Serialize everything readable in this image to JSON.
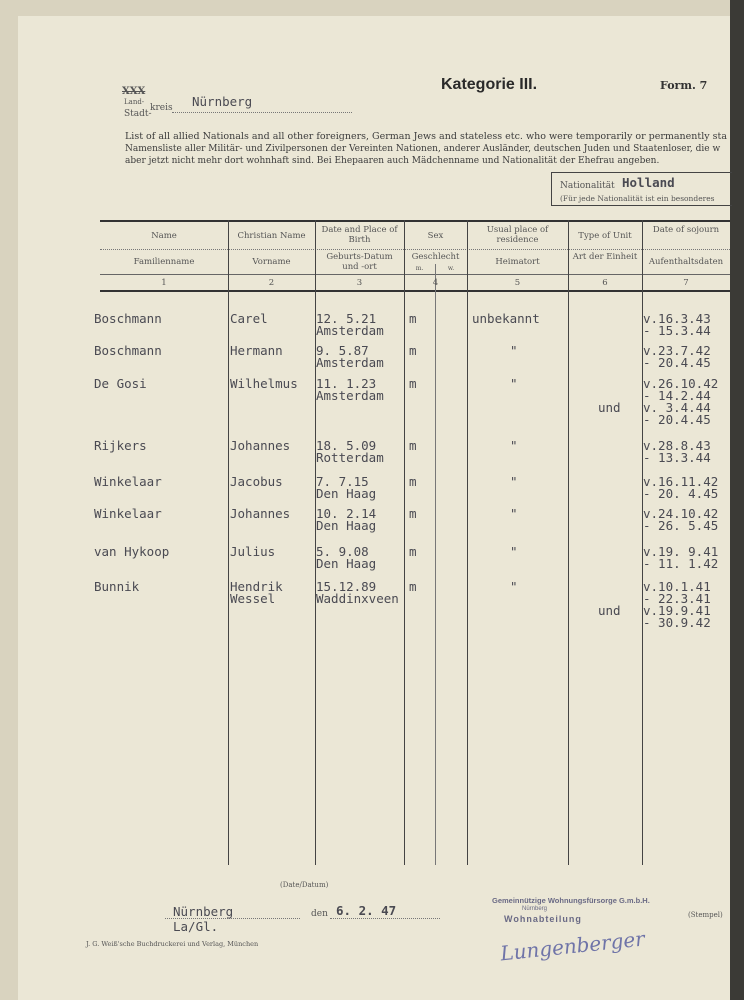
{
  "header": {
    "title": "Kategorie III.",
    "form": "Form. 7",
    "land_struck": "XXX",
    "land_label": "Land-",
    "stadt_label": "Stadt-",
    "kreis_label": "kreis",
    "kreis_value": "Nürnberg",
    "intro_en": "List of all allied Nationals and all other foreigners, German Jews and stateless etc. who were temporarily or permanently sta",
    "intro_de_1": "Namensliste aller Militär- und Zivilpersonen der Vereinten Nationen, anderer Ausländer, deutschen Juden und Staatenloser, die w",
    "intro_de_2": "aber jetzt nicht mehr dort wohnhaft sind. Bei Ehepaaren auch Mädchenname und Nationalität der Ehefrau angeben.",
    "nationality_label": "Nationalität",
    "nationality_value": "Holland",
    "nationality_note": "(Für jede Nationalität ist ein besonderes"
  },
  "columns": [
    {
      "en": "Name",
      "de": "Familienname",
      "num": "1"
    },
    {
      "en": "Christian Name",
      "de": "Vorname",
      "num": "2"
    },
    {
      "en": "Date and Place of Birth",
      "de": "Geburts-Datum und -ort",
      "num": "3"
    },
    {
      "en": "Sex",
      "de": "Geschlecht",
      "num": "4",
      "sub_m": "m.",
      "sub_w": "w."
    },
    {
      "en": "Usual place of residence",
      "de": "Heimatort",
      "num": "5"
    },
    {
      "en": "Type of Unit",
      "de": "Art der Einheit",
      "num": "6"
    },
    {
      "en": "Date of sojourn",
      "de": "Aufenthaltsdaten",
      "num": "7"
    }
  ],
  "rows": [
    {
      "name": "Boschmann",
      "first": [
        "Carel"
      ],
      "birth": [
        "12. 5.21",
        "Amsterdam"
      ],
      "sex": "m",
      "residence": "unbekannt",
      "unit": "",
      "sojourn": [
        "v.16.3.43",
        "- 15.3.44"
      ]
    },
    {
      "name": "Boschmann",
      "first": [
        "Hermann"
      ],
      "birth": [
        " 9. 5.87",
        "Amsterdam"
      ],
      "sex": "m",
      "residence": "\"",
      "unit": "",
      "sojourn": [
        "v.23.7.42",
        "- 20.4.45"
      ]
    },
    {
      "name": "De Gosi",
      "first": [
        "Wilhelmus"
      ],
      "birth": [
        "11. 1.23",
        "Amsterdam"
      ],
      "sex": "m",
      "residence": "\"",
      "unit": "und",
      "sojourn": [
        "v.26.10.42",
        "- 14.2.44",
        "v. 3.4.44",
        "- 20.4.45"
      ]
    },
    {
      "name": "Rijkers",
      "first": [
        "Johannes"
      ],
      "birth": [
        "18. 5.09",
        "Rotterdam"
      ],
      "sex": "m",
      "residence": "\"",
      "unit": "",
      "sojourn": [
        "v.28.8.43",
        "- 13.3.44"
      ]
    },
    {
      "name": "Winkelaar",
      "first": [
        "Jacobus"
      ],
      "birth": [
        " 7. 7.15",
        "Den Haag"
      ],
      "sex": "m",
      "residence": "\"",
      "unit": "",
      "sojourn": [
        "v.16.11.42",
        "- 20. 4.45"
      ]
    },
    {
      "name": "Winkelaar",
      "first": [
        "Johannes"
      ],
      "birth": [
        "10. 2.14",
        "Den Haag"
      ],
      "sex": "m",
      "residence": "\"",
      "unit": "",
      "sojourn": [
        "v.24.10.42",
        "- 26. 5.45"
      ]
    },
    {
      "name": "van Hykoop",
      "first": [
        "Julius"
      ],
      "birth": [
        " 5. 9.08",
        "Den Haag"
      ],
      "sex": "m",
      "residence": "\"",
      "unit": "",
      "sojourn": [
        "v.19. 9.41",
        "- 11. 1.42"
      ]
    },
    {
      "name": "Bunnik",
      "first": [
        "Hendrik",
        "Wessel"
      ],
      "birth": [
        "15.12.89",
        "Waddinxveen"
      ],
      "sex": "m",
      "residence": "\"",
      "unit": "und",
      "sojourn": [
        "v.10.1.41",
        "- 22.3.41",
        "v.19.9.41",
        "- 30.9.42"
      ]
    }
  ],
  "footer": {
    "date_caption": "(Date/Datum)",
    "place": "Nürnberg",
    "ref": "La/Gl.",
    "den_label": "den",
    "date": "6. 2. 47",
    "printer": "J. G. Weiß'sche Buchdruckerei und Verlag, München",
    "stamp_line1": "Gemeinnützige Wohnungsfürsorge G.m.b.H.",
    "stamp_line2": "Nürnberg",
    "stamp_line3": "Wohnabteilung",
    "signature": "Lungenberger",
    "stempel_label": "(Stempel)"
  }
}
